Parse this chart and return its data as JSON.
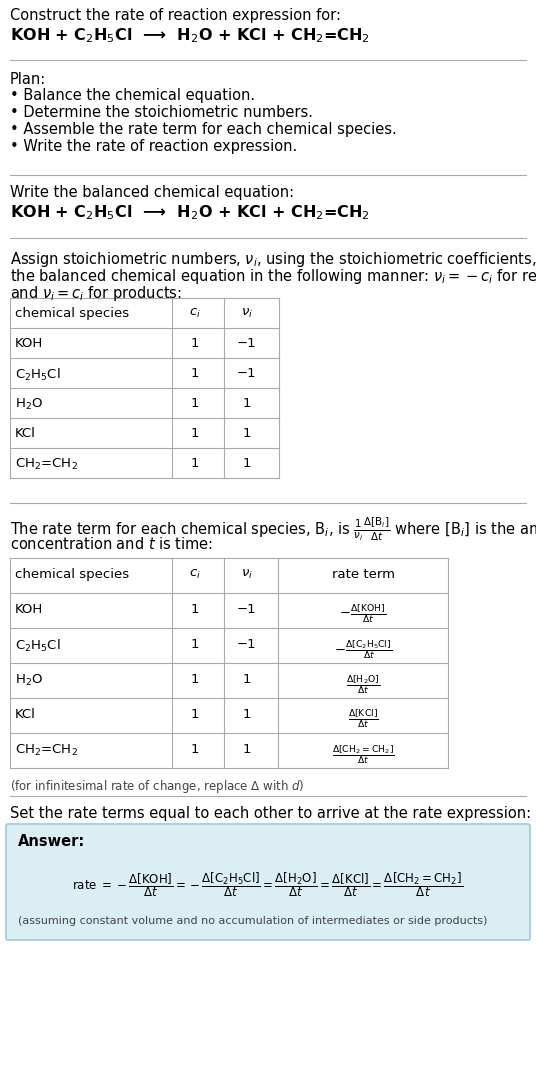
{
  "bg_color": "#ffffff",
  "text_color": "#000000",
  "answer_box_color": "#daeef3",
  "answer_box_edge": "#a0c8d8",
  "title_line1": "Construct the rate of reaction expression for:",
  "equation_header": "KOH + C$_2$H$_5$Cl  ⟶  H$_2$O + KCl + CH$_2$=CH$_2$",
  "plan_header": "Plan:",
  "plan_bullets": [
    "• Balance the chemical equation.",
    "• Determine the stoichiometric numbers.",
    "• Assemble the rate term for each chemical species.",
    "• Write the rate of reaction expression."
  ],
  "balanced_eq_label": "Write the balanced chemical equation:",
  "balanced_eq": "KOH + C$_2$H$_5$Cl  ⟶  H$_2$O + KCl + CH$_2$=CH$_2$",
  "stoich_intro": "Assign stoichiometric numbers, $\\nu_i$, using the stoichiometric coefficients, $c_i$, from\nthe balanced chemical equation in the following manner: $\\nu_i = -c_i$ for reactants\nand $\\nu_i = c_i$ for products:",
  "table1_headers": [
    "chemical species",
    "$c_i$",
    "$\\nu_i$"
  ],
  "table1_rows": [
    [
      "KOH",
      "1",
      "−1"
    ],
    [
      "C$_2$H$_5$Cl",
      "1",
      "−1"
    ],
    [
      "H$_2$O",
      "1",
      "1"
    ],
    [
      "KCl",
      "1",
      "1"
    ],
    [
      "CH$_2$=CH$_2$",
      "1",
      "1"
    ]
  ],
  "table2_headers": [
    "chemical species",
    "$c_i$",
    "$\\nu_i$",
    "rate term"
  ],
  "table2_rows": [
    [
      "KOH",
      "1",
      "−1",
      "$-\\frac{\\Delta[\\mathrm{KOH}]}{\\Delta t}$"
    ],
    [
      "C$_2$H$_5$Cl",
      "1",
      "−1",
      "$-\\frac{\\Delta[\\mathrm{C_2H_5Cl}]}{\\Delta t}$"
    ],
    [
      "H$_2$O",
      "1",
      "1",
      "$\\frac{\\Delta[\\mathrm{H_2O}]}{\\Delta t}$"
    ],
    [
      "KCl",
      "1",
      "1",
      "$\\frac{\\Delta[\\mathrm{KCl}]}{\\Delta t}$"
    ],
    [
      "CH$_2$=CH$_2$",
      "1",
      "1",
      "$\\frac{\\Delta[\\mathrm{CH_2{=}CH_2}]}{\\Delta t}$"
    ]
  ],
  "infinitesimal_note": "(for infinitesimal rate of change, replace Δ with $d$)",
  "set_rate_intro": "Set the rate terms equal to each other to arrive at the rate expression:",
  "answer_label": "Answer:",
  "answer_note": "(assuming constant volume and no accumulation of intermediates or side products)"
}
